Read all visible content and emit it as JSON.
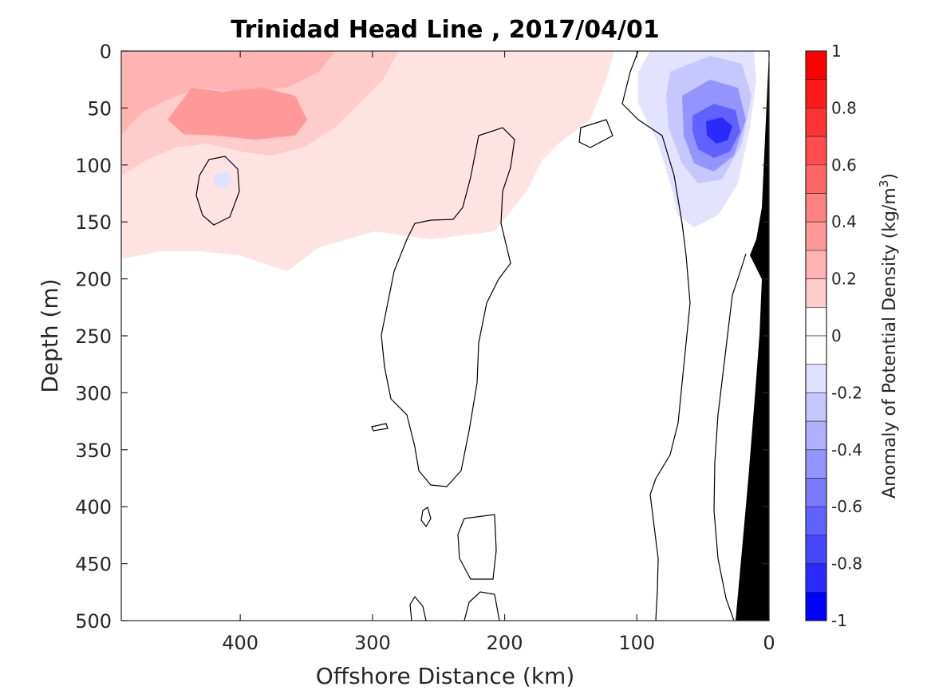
{
  "chart_data": {
    "type": "heatmap",
    "title": "Trinidad Head Line , 2017/04/01",
    "xlabel": "Offshore Distance (km)",
    "ylabel": "Depth (m)",
    "colorbar_label": "Anomaly of Potential Density (kg/m",
    "colorbar_label_sup": "3",
    "colorbar_label_close": ")",
    "x_axis": {
      "range": [
        490,
        0
      ],
      "reversed": true,
      "ticks": [
        400,
        300,
        200,
        100,
        0
      ]
    },
    "y_axis": {
      "range": [
        0,
        500
      ],
      "reversed": true,
      "ticks": [
        0,
        50,
        100,
        150,
        200,
        250,
        300,
        350,
        400,
        450,
        500
      ]
    },
    "colorbar": {
      "range": [
        -1,
        1
      ],
      "ticks": [
        1,
        0.8,
        0.6,
        0.4,
        0.2,
        0,
        -0.2,
        -0.4,
        -0.6,
        -0.8,
        -1
      ],
      "levels": [
        {
          "min": 0.9,
          "max": 1.0,
          "color": "#ff0000"
        },
        {
          "min": 0.8,
          "max": 0.9,
          "color": "#ff1a1a"
        },
        {
          "min": 0.7,
          "max": 0.8,
          "color": "#ff3333"
        },
        {
          "min": 0.6,
          "max": 0.7,
          "color": "#ff4d4d"
        },
        {
          "min": 0.5,
          "max": 0.6,
          "color": "#ff6666"
        },
        {
          "min": 0.4,
          "max": 0.5,
          "color": "#ff8080"
        },
        {
          "min": 0.3,
          "max": 0.4,
          "color": "#ff9999"
        },
        {
          "min": 0.2,
          "max": 0.3,
          "color": "#ffb3b3"
        },
        {
          "min": 0.1,
          "max": 0.2,
          "color": "#ffcccc"
        },
        {
          "min": 0.0,
          "max": 0.1,
          "color": "#ffffff"
        },
        {
          "min": -0.1,
          "max": 0.0,
          "color": "#ffffff"
        },
        {
          "min": -0.2,
          "max": -0.1,
          "color": "#e0e0ff"
        },
        {
          "min": -0.3,
          "max": -0.2,
          "color": "#c7c7ff"
        },
        {
          "min": -0.4,
          "max": -0.3,
          "color": "#b0b0ff"
        },
        {
          "min": -0.5,
          "max": -0.4,
          "color": "#9494ff"
        },
        {
          "min": -0.6,
          "max": -0.5,
          "color": "#7a7aff"
        },
        {
          "min": -0.7,
          "max": -0.6,
          "color": "#6161ff"
        },
        {
          "min": -0.8,
          "max": -0.7,
          "color": "#4747ff"
        },
        {
          "min": -0.9,
          "max": -0.8,
          "color": "#2a2aff"
        },
        {
          "min": -1.0,
          "max": -0.9,
          "color": "#0000ff"
        }
      ]
    },
    "features": [
      {
        "name": "nearshore negative anomaly core",
        "x": 35,
        "depth": 70,
        "value": -0.8
      },
      {
        "name": "offshore positive anomaly band",
        "x_range": [
          490,
          150
        ],
        "depth_range": [
          0,
          180
        ],
        "max_value": 0.5
      },
      {
        "name": "bathymetry (seafloor)",
        "color": "#000000"
      }
    ]
  }
}
